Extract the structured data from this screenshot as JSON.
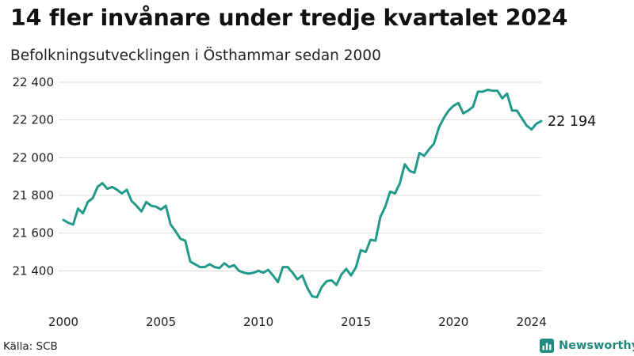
{
  "header": {
    "title": "14 fler invånare under tredje kvartalet 2024",
    "subtitle": "Befolkningsutvecklingen i Östhammar sedan 2000"
  },
  "footer": {
    "source": "Källa: SCB",
    "brand": "Newsworthy",
    "brand_icon": "newsworthy-logo-icon"
  },
  "colors": {
    "line": "#22998a",
    "grid": "#d9d9d9",
    "brand": "#1f8a7d"
  },
  "chart_data": {
    "type": "line",
    "title": "14 fler invånare under tredje kvartalet 2024",
    "subtitle": "Befolkningsutvecklingen i Östhammar sedan 2000",
    "xlabel": "",
    "ylabel": "",
    "grid": true,
    "legend": "none",
    "ylim": [
      21200,
      22400
    ],
    "y_ticks": [
      21400,
      21600,
      21800,
      22000,
      22200,
      22400
    ],
    "y_tick_labels": [
      "21 400",
      "21 600",
      "21 800",
      "22 000",
      "22 200",
      "22 400"
    ],
    "x_ticks": [
      2000,
      2005,
      2010,
      2015,
      2020,
      2024
    ],
    "x_tick_labels": [
      "2000",
      "2005",
      "2010",
      "2015",
      "2020",
      "2024"
    ],
    "end_label": "22 194",
    "series": [
      {
        "x": [
          2000.0,
          2000.25,
          2000.5,
          2000.75,
          2001.0,
          2001.25,
          2001.5,
          2001.75,
          2002.0,
          2002.25,
          2002.5,
          2002.75,
          2003.0,
          2003.25,
          2003.5,
          2003.75,
          2004.0,
          2004.25,
          2004.5,
          2004.75,
          2005.0,
          2005.25,
          2005.5,
          2005.75,
          2006.0,
          2006.25,
          2006.5,
          2006.75,
          2007.0,
          2007.25,
          2007.5,
          2007.75,
          2008.0,
          2008.25,
          2008.5,
          2008.75,
          2009.0,
          2009.25,
          2009.5,
          2009.75,
          2010.0,
          2010.25,
          2010.5,
          2010.75,
          2011.0,
          2011.25,
          2011.5,
          2011.75,
          2012.0,
          2012.25,
          2012.5,
          2012.75,
          2013.0,
          2013.25,
          2013.5,
          2013.75,
          2014.0,
          2014.25,
          2014.5,
          2014.75,
          2015.0,
          2015.25,
          2015.5,
          2015.75,
          2016.0,
          2016.25,
          2016.5,
          2016.75,
          2017.0,
          2017.25,
          2017.5,
          2017.75,
          2018.0,
          2018.25,
          2018.5,
          2018.75,
          2019.0,
          2019.25,
          2019.5,
          2019.75,
          2020.0,
          2020.25,
          2020.5,
          2020.75,
          2021.0,
          2021.25,
          2021.5,
          2021.75,
          2022.0,
          2022.25,
          2022.5,
          2022.75,
          2023.0,
          2023.25,
          2023.5,
          2023.75,
          2024.0,
          2024.25,
          2024.5
        ],
        "values": [
          21670,
          21655,
          21645,
          21730,
          21705,
          21765,
          21785,
          21845,
          21865,
          21835,
          21845,
          21830,
          21810,
          21830,
          21770,
          21745,
          21715,
          21765,
          21745,
          21740,
          21725,
          21745,
          21645,
          21610,
          21570,
          21560,
          21450,
          21435,
          21420,
          21420,
          21435,
          21420,
          21415,
          21440,
          21420,
          21430,
          21400,
          21390,
          21385,
          21390,
          21400,
          21390,
          21405,
          21375,
          21340,
          21420,
          21420,
          21390,
          21355,
          21375,
          21310,
          21265,
          21260,
          21315,
          21345,
          21350,
          21325,
          21380,
          21410,
          21375,
          21420,
          21510,
          21500,
          21565,
          21560,
          21685,
          21740,
          21820,
          21810,
          21865,
          21965,
          21930,
          21920,
          22025,
          22010,
          22045,
          22075,
          22160,
          22210,
          22250,
          22275,
          22290,
          22235,
          22250,
          22270,
          22350,
          22350,
          22360,
          22355,
          22355,
          22315,
          22340,
          22250,
          22250,
          22210,
          22170,
          22150,
          22180,
          22194
        ]
      }
    ]
  }
}
